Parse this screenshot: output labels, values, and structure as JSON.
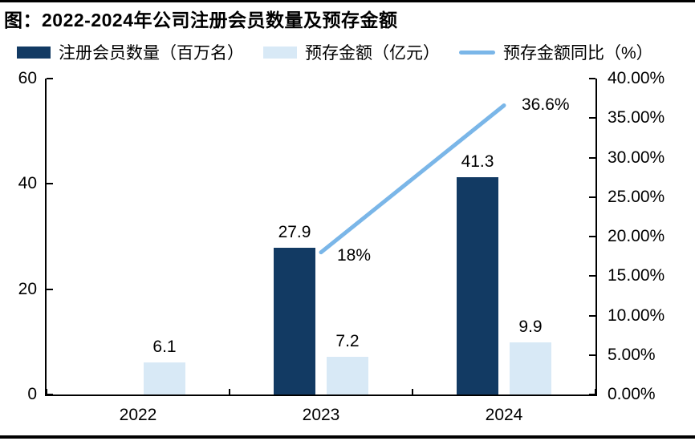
{
  "title": "图：2022-2024年公司注册会员数量及预存金额",
  "legend": [
    {
      "label": "注册会员数量（百万名）",
      "marker": "bar",
      "color": "#123a63"
    },
    {
      "label": "预存金额（亿元）",
      "marker": "bar",
      "color": "#d8e9f6"
    },
    {
      "label": "预存金额同比（%）",
      "marker": "line",
      "color": "#7ab6e8"
    }
  ],
  "chart_data": {
    "type": "bar+line",
    "categories": [
      "2022",
      "2023",
      "2024"
    ],
    "series": [
      {
        "name": "注册会员数量（百万名）",
        "type": "bar",
        "axis": "left",
        "color": "#123a63",
        "values": [
          null,
          27.9,
          41.3
        ],
        "value_labels": [
          "",
          "27.9",
          "41.3"
        ]
      },
      {
        "name": "预存金额（亿元）",
        "type": "bar",
        "axis": "left",
        "color": "#d8e9f6",
        "values": [
          6.1,
          7.2,
          9.9
        ],
        "value_labels": [
          "6.1",
          "7.2",
          "9.9"
        ]
      },
      {
        "name": "预存金额同比（%）",
        "type": "line",
        "axis": "right",
        "color": "#7ab6e8",
        "values": [
          null,
          18,
          36.6
        ],
        "value_labels": [
          "",
          "18%",
          "36.6%"
        ]
      }
    ],
    "left_axis": {
      "min": 0,
      "max": 60,
      "tick_labels": [
        "60",
        "40",
        "20",
        "0"
      ],
      "tick_values": [
        60,
        40,
        20,
        0
      ]
    },
    "right_axis": {
      "min": 0,
      "max": 40,
      "tick_labels": [
        "40.00%",
        "35.00%",
        "30.00%",
        "25.00%",
        "20.00%",
        "15.00%",
        "10.00%",
        "5.00%",
        "0.00%"
      ],
      "tick_values": [
        40,
        35,
        30,
        25,
        20,
        15,
        10,
        5,
        0
      ]
    },
    "grid": false,
    "legend_position": "top"
  }
}
